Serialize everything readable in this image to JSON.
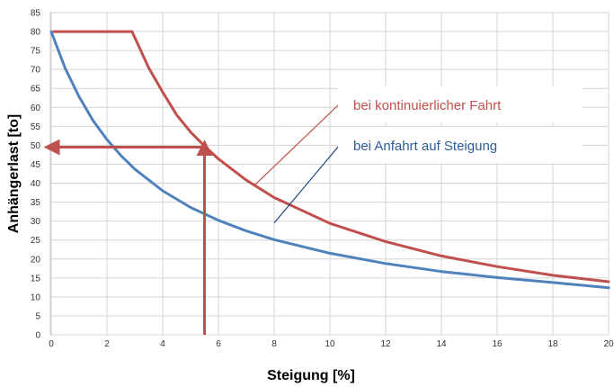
{
  "chart_data": {
    "type": "line",
    "xlabel": "Steigung [%]",
    "ylabel": "Anhängerlast [to]",
    "xlim": [
      0,
      20
    ],
    "ylim": [
      0,
      85
    ],
    "x_ticks": [
      0,
      2,
      4,
      6,
      8,
      10,
      12,
      14,
      16,
      18,
      20
    ],
    "y_ticks": [
      0,
      5,
      10,
      15,
      20,
      25,
      30,
      35,
      40,
      45,
      50,
      55,
      60,
      65,
      70,
      75,
      80,
      85
    ],
    "x_tick_labels": [
      "0",
      "2",
      "4",
      "6",
      "8",
      "10",
      "12",
      "14",
      "16",
      "18",
      "20"
    ],
    "y_tick_labels": [
      "0",
      "5",
      "10",
      "15",
      "20",
      "25",
      "30",
      "35",
      "40",
      "45",
      "50",
      "55",
      "60",
      "65",
      "70",
      "75",
      "80",
      "85"
    ],
    "grid": true,
    "series": [
      {
        "name": "bei kontinuierlicher Fahrt",
        "color": "#c0504d",
        "x": [
          0.1,
          1.0,
          2.0,
          2.7,
          2.9,
          3.5,
          4.0,
          4.5,
          5.0,
          5.5,
          6.0,
          7.0,
          8.0,
          10.0,
          12.0,
          14.0,
          16.0,
          18.0,
          20.0
        ],
        "y": [
          80,
          80,
          80,
          80,
          80,
          70.4,
          64.0,
          58.0,
          53.5,
          49.8,
          46.4,
          40.8,
          36.2,
          29.4,
          24.6,
          20.8,
          18.0,
          15.7,
          14.0
        ]
      },
      {
        "name": "bei Anfahrt auf Steigung",
        "color": "#4f81bd",
        "x": [
          0.0,
          0.5,
          1.0,
          1.5,
          2.0,
          2.5,
          3.0,
          4.0,
          5.0,
          6.0,
          7.0,
          8.0,
          10.0,
          12.0,
          14.0,
          16.0,
          18.0,
          20.0
        ],
        "y": [
          80,
          70.3,
          62.8,
          56.5,
          51.5,
          47.3,
          43.7,
          38.0,
          33.6,
          30.2,
          27.4,
          25.1,
          21.5,
          18.8,
          16.7,
          15.1,
          13.8,
          12.4
        ]
      }
    ],
    "annotations": [
      {
        "type": "arrow",
        "color": "#c0504d",
        "points": [
          [
            5.5,
            0
          ],
          [
            5.5,
            49.5
          ]
        ]
      },
      {
        "type": "arrow",
        "color": "#c0504d",
        "points": [
          [
            5.5,
            49.5
          ],
          [
            0,
            49.5
          ]
        ]
      }
    ],
    "legend": {
      "placement": "center-right",
      "entries": [
        {
          "text": "bei kontinuierlicher Fahrt",
          "color": "#c0504d",
          "leader_to": [
            7.3,
            39.5
          ]
        },
        {
          "text": "bei Anfahrt auf Steigung",
          "color": "#1f497d",
          "text_color": "#2e5d9a",
          "leader_to": [
            8.0,
            29.5
          ]
        }
      ]
    }
  }
}
